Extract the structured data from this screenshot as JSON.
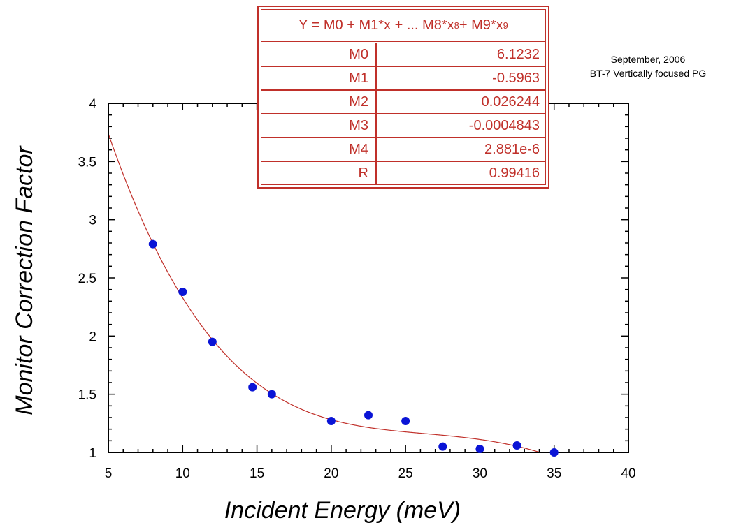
{
  "chart_data": {
    "type": "scatter",
    "title": "",
    "xlabel": "Incident Energy (meV)",
    "ylabel": "Monitor Correction Factor",
    "xlim": [
      5,
      40
    ],
    "ylim": [
      1,
      4
    ],
    "x_ticks": [
      5,
      10,
      15,
      20,
      25,
      30,
      35,
      40
    ],
    "y_ticks": [
      1,
      1.5,
      2,
      2.5,
      3,
      3.5,
      4
    ],
    "x_tick_labels": [
      "5",
      "10",
      "15",
      "20",
      "25",
      "30",
      "35",
      "40"
    ],
    "y_tick_labels": [
      "1",
      "1.5",
      "2",
      "2.5",
      "3",
      "3.5",
      "4"
    ],
    "grid": false,
    "points": {
      "x": [
        8,
        10,
        12,
        14.7,
        16,
        20,
        22.5,
        25,
        27.5,
        30,
        32.5,
        35
      ],
      "y": [
        2.79,
        2.38,
        1.95,
        1.56,
        1.5,
        1.27,
        1.32,
        1.27,
        1.05,
        1.03,
        1.06,
        1.0
      ],
      "color": "#0a14d6"
    },
    "fit": {
      "equation_main": "Y = M0 + M1*x + ... M8*x",
      "equation_exp1": "8",
      "equation_mid": " + M9*x",
      "equation_exp2": "9",
      "coefficients": [
        {
          "name": "M0",
          "value": "6.1232",
          "num": 6.1232
        },
        {
          "name": "M1",
          "value": "-0.5963",
          "num": -0.5963
        },
        {
          "name": "M2",
          "value": "0.026244",
          "num": 0.026244
        },
        {
          "name": "M3",
          "value": "-0.0004843",
          "num": -0.0004843
        },
        {
          "name": "M4",
          "value": "2.881e-6",
          "num": 2.881e-06
        }
      ],
      "r_name": "R",
      "r_value": "0.99416",
      "color": "#c0302a"
    },
    "annotations": [
      "September, 2006",
      "BT-7 Vertically focused PG"
    ]
  }
}
